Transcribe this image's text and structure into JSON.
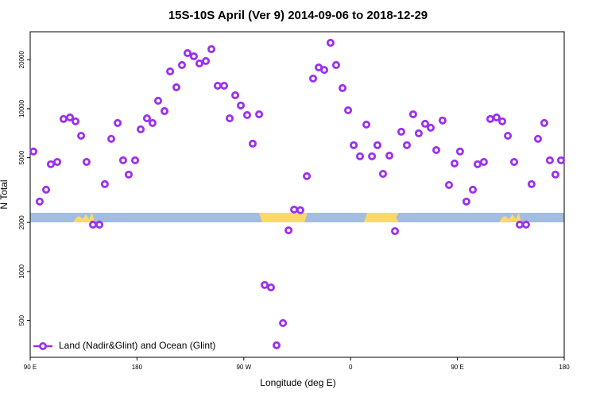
{
  "chart_data": {
    "type": "scatter",
    "title": "15S-10S April (Ver 9)   2014-09-06 to 2018-12-29",
    "xlabel": "Longitude (deg E)",
    "ylabel": "N Total",
    "xlim": [
      90,
      540
    ],
    "ylim": [
      297,
      29700
    ],
    "log_y": true,
    "xticks": [
      {
        "value": 90,
        "label": "90 E"
      },
      180,
      {
        "value": 270,
        "label": "90 W"
      },
      {
        "value": 360,
        "label": "0"
      },
      {
        "value": 450,
        "label": "90 E"
      },
      {
        "value": 540,
        "label": "180"
      }
    ],
    "yticks": [
      500,
      1000,
      2000,
      5000,
      10000,
      20000
    ],
    "legend": "bottom-left",
    "series": [
      {
        "name": "Land (Nadir&Glint) and Ocean (Glint)",
        "color": "#9b30f0",
        "x": [
          92.7,
          98,
          103.4,
          107.4,
          112.8,
          118.1,
          123.5,
          128.2,
          132.9,
          137.5,
          142.9,
          148.3,
          152.9,
          158.3,
          163.7,
          168.3,
          173,
          178.4,
          183.1,
          188.4,
          193.1,
          197.8,
          203.2,
          207.9,
          213.2,
          217.9,
          222.6,
          227.9,
          232.6,
          238,
          242.7,
          248,
          253.4,
          258.1,
          262.8,
          267.5,
          272.8,
          277.5,
          282.9,
          287.6,
          292.9,
          297.6,
          303,
          307.7,
          312.4,
          317.7,
          323.1,
          328.4,
          333.1,
          337.8,
          343.1,
          347.8,
          353.2,
          357.9,
          362.6,
          367.9,
          373.3,
          378,
          382.6,
          387.3,
          392.7,
          397.4,
          402.7,
          407.4,
          412.7,
          417.4,
          422.8,
          427.5,
          432.2,
          437.5,
          442.9,
          447.6,
          452.2,
          457.6,
          463,
          467,
          472.3,
          477.7,
          483,
          487.8,
          492.5,
          497.8,
          502.5,
          507.8,
          512.5,
          517.9,
          523.2,
          527.9,
          532.6,
          537.3
        ],
        "values": [
          5460,
          2690,
          3180,
          4560,
          4710,
          8650,
          8840,
          8360,
          6820,
          4710,
          1940,
          1940,
          3440,
          6530,
          8170,
          4820,
          3940,
          4820,
          7470,
          8730,
          8170,
          11190,
          9670,
          16950,
          13540,
          18550,
          21950,
          20990,
          18970,
          19620,
          23220,
          13840,
          13840,
          8730,
          12100,
          10470,
          9140,
          6100,
          9240,
          826,
          798,
          352,
          482,
          1790,
          2400,
          2380,
          3850,
          15330,
          17930,
          17300,
          25400,
          18550,
          13390,
          9780,
          5970,
          5100,
          7990,
          5100,
          5970,
          3980,
          5150,
          1770,
          7220,
          5970,
          9240,
          7060,
          8080,
          7640,
          5570,
          8470,
          3400,
          4610,
          5460,
          2690,
          3180,
          4560,
          4710,
          8650,
          8840,
          8360,
          6820,
          4710,
          1940,
          1940,
          3440,
          6530,
          8170,
          4820,
          3940,
          4820
        ]
      }
    ]
  }
}
